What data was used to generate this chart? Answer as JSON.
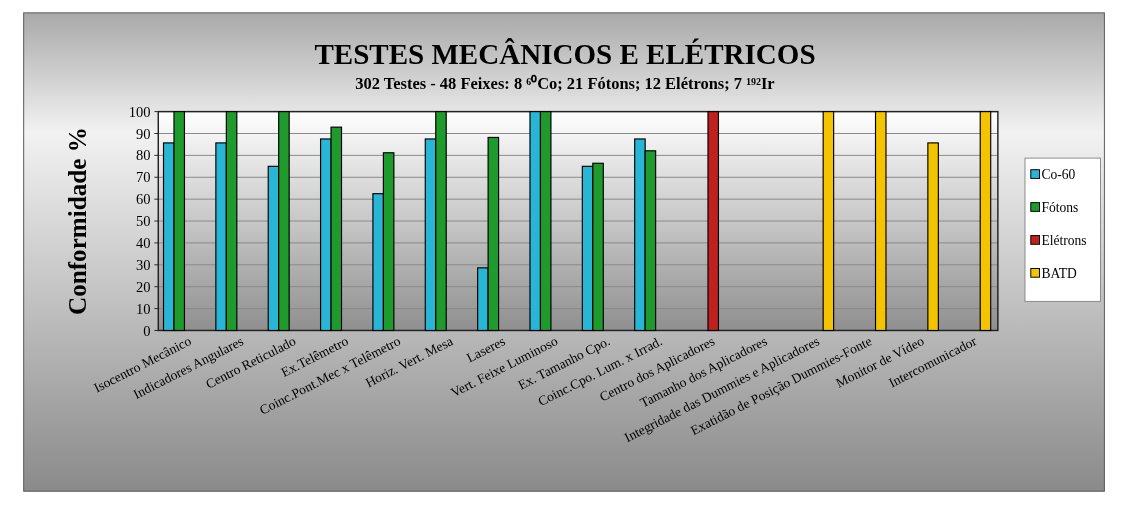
{
  "chart_data": {
    "type": "bar",
    "title": "TESTES MECÂNICOS E ELÉTRICOS",
    "subtitle": "302 Testes - 48 Feixes: 8 ⁶⁰Co; 21 Fótons; 12 Elétrons; 7 ¹⁹²Ir",
    "ylabel": "Conformidade %",
    "categories": [
      "Isocentro Mecânico",
      "Indicadores Angulares",
      "Centro Reticulado",
      "Ex.Telêmetro",
      "Coinc.Pont.Mec x Telêmetro",
      "Horiz. Vert. Mesa",
      "Laseres",
      "Vert. Feixe Luminoso",
      "Ex. Tamanho Cpo.",
      "Coinc.Cpo. Lum. x Irrad.",
      "Centro dos Aplicadores",
      "Tamanho dos Aplicadores",
      "Integridade das Dummies e Aplicadores",
      "Exatidão de Posição Dummies-Fonte",
      "Monitor de Vídeo",
      "Intercomunicador"
    ],
    "series": [
      {
        "name": "Co-60",
        "color": "#29b5d6",
        "values": [
          85.7,
          85.7,
          75,
          87.5,
          62.5,
          87.5,
          28.6,
          100,
          75,
          87.5,
          null,
          null,
          null,
          null,
          null,
          null
        ]
      },
      {
        "name": "Fótons",
        "color": "#1f9a2c",
        "values": [
          100,
          100,
          100,
          92.9,
          81.2,
          100,
          88.2,
          100,
          76.4,
          82.1,
          null,
          null,
          null,
          null,
          null,
          null
        ]
      },
      {
        "name": "Elétrons",
        "color": "#c0201e",
        "values": [
          null,
          null,
          null,
          null,
          null,
          null,
          null,
          null,
          null,
          null,
          100,
          null,
          null,
          null,
          null,
          null
        ]
      },
      {
        "name": "BATD",
        "color": "#f5c400",
        "values": [
          null,
          null,
          null,
          null,
          null,
          null,
          null,
          null,
          null,
          null,
          null,
          null,
          100,
          100,
          85.7,
          100
        ]
      }
    ],
    "ylim": [
      0,
      100
    ],
    "yticks": [
      0,
      10,
      20,
      30,
      40,
      50,
      60,
      70,
      80,
      90,
      100
    ],
    "grid": "y",
    "legend": "right"
  }
}
